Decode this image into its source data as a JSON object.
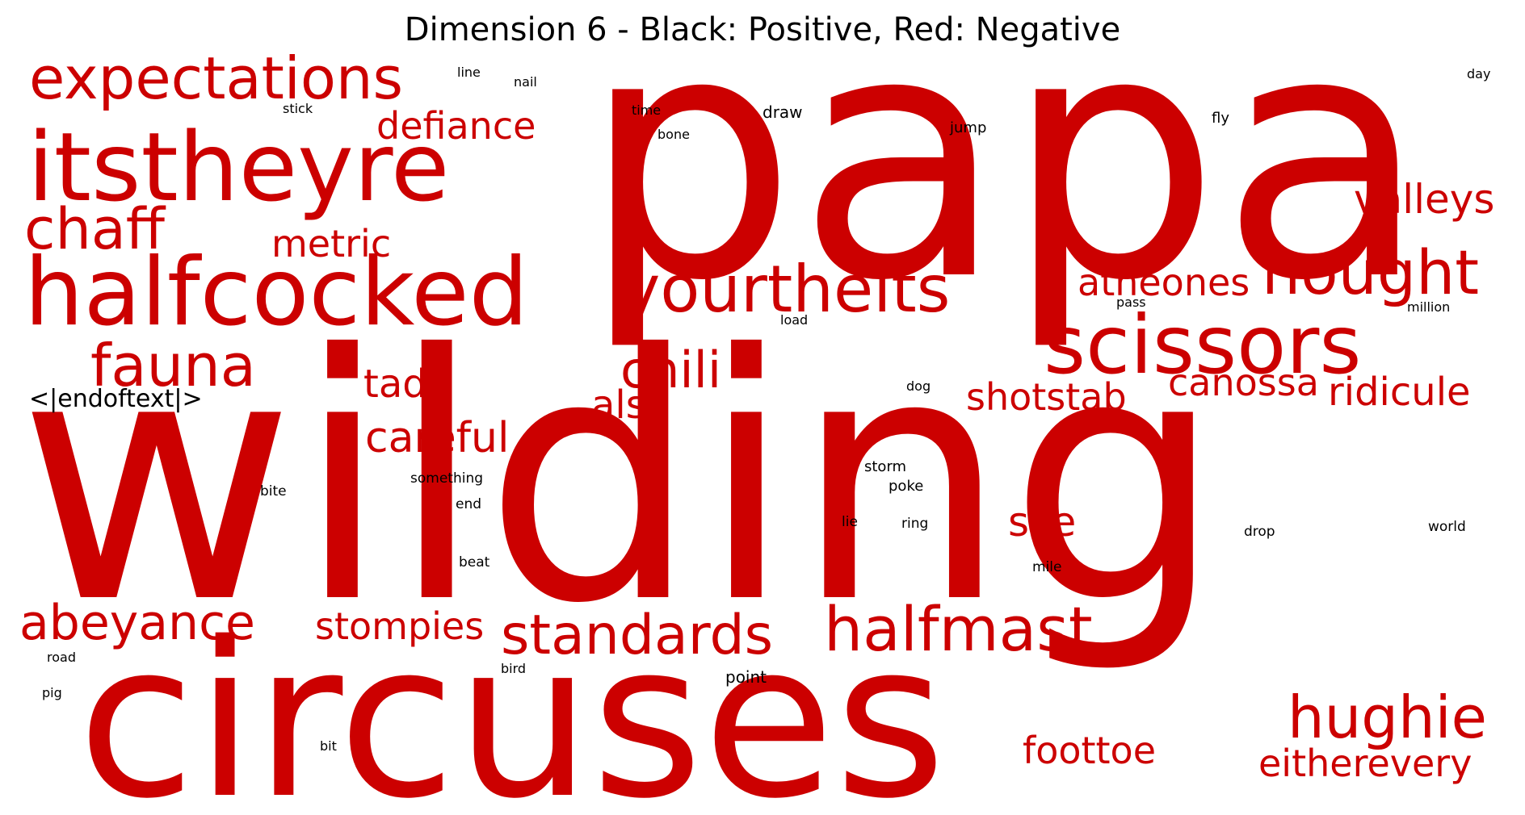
{
  "title": "Dimension 6 - Black: Positive, Red: Negative",
  "colors": {
    "positive": "#000000",
    "negative": "#cc0000",
    "background": "#ffffff"
  },
  "words": {
    "papa": "papa",
    "wilding": "wilding",
    "circuses": "circuses",
    "itstheyre": "itstheyre",
    "halfcocked": "halfcocked",
    "expectations": "expectations",
    "chaff": "chaff",
    "defiance": "defiance",
    "metric": "metric",
    "yourtheits": "yourtheits",
    "scissors": "scissors",
    "nought": "nought",
    "atheones": "atheones",
    "valleys": "valleys",
    "fauna": "fauna",
    "chili": "chili",
    "tad": "tad",
    "also": "also",
    "shotstab": "shotstab",
    "canossa": "canossa",
    "ridicule": "ridicule",
    "careful": "careful",
    "sce": "sce",
    "abeyance": "abeyance",
    "stompies": "stompies",
    "standards": "standards",
    "halfmast": "halfmast",
    "hughie": "hughie",
    "foottoe": "foottoe",
    "eitherevery": "eitherevery",
    "endoftext": "<|endoftext|>",
    "line": "line",
    "nail": "nail",
    "stick": "stick",
    "time": "time",
    "bone": "bone",
    "draw": "draw",
    "jump": "jump",
    "fly": "fly",
    "day": "day",
    "load": "load",
    "pass": "pass",
    "million": "million",
    "dog": "dog",
    "storm": "storm",
    "poke": "poke",
    "something": "something",
    "bite": "bite",
    "end": "end",
    "lie": "lie",
    "ring": "ring",
    "drop": "drop",
    "world": "world",
    "beat": "beat",
    "mile": "mile",
    "road": "road",
    "bird": "bird",
    "pig": "pig",
    "point": "point",
    "bit": "bit"
  }
}
